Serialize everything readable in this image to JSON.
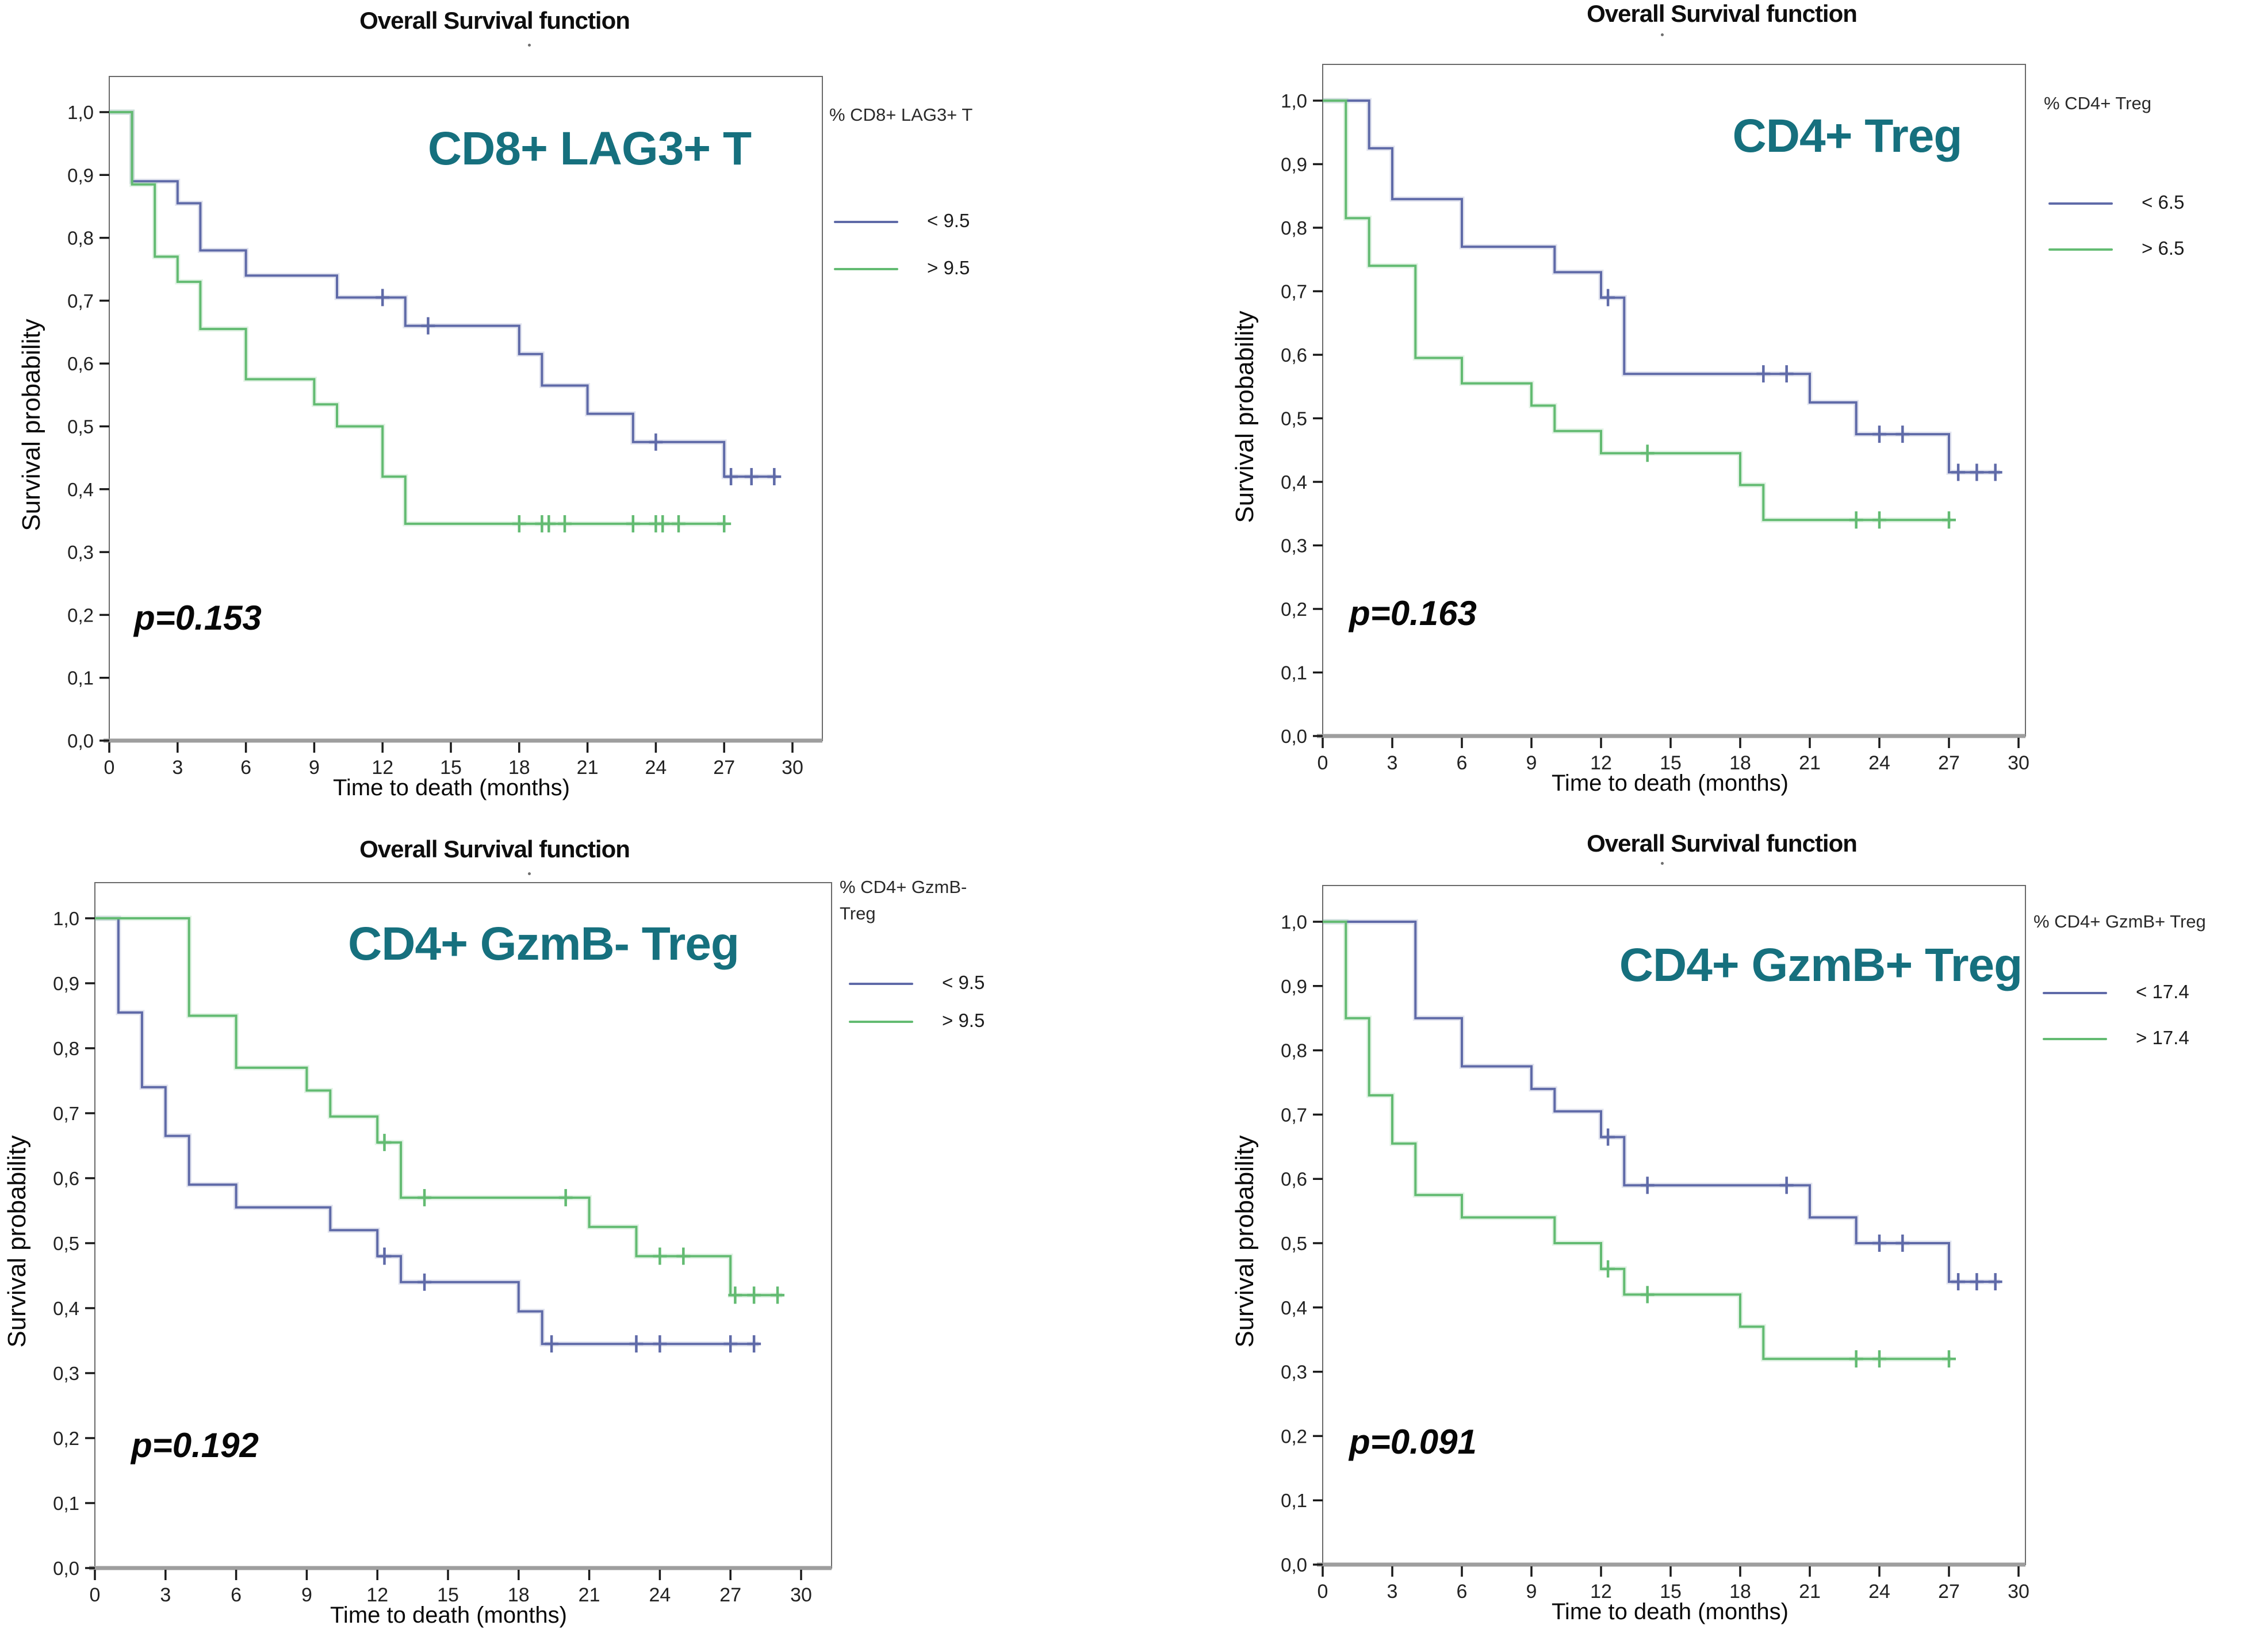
{
  "colors": {
    "blue": "#5f6aa8",
    "green": "#63bb72",
    "teal": "#16707e",
    "frame": "#6a6a6a",
    "baseline": "#9e9e9e",
    "tick": "#1a1a1a",
    "tick_label": "#222222"
  },
  "chart_data": [
    {
      "id": "cd8_lag3_t",
      "type": "line",
      "curve_style": "kaplan-meier-step",
      "title": "Overall Survival function",
      "panel_label": "CD8+ LAG3+ T",
      "p_value_text": "p=0.153",
      "xlabel": "Time to death (months)",
      "ylabel": "Survival probability",
      "xlim": [
        0,
        30
      ],
      "ylim": [
        0.0,
        1.0
      ],
      "x_ticks": [
        0,
        3,
        6,
        9,
        12,
        15,
        18,
        21,
        24,
        27,
        30
      ],
      "y_tick_values": [
        0.0,
        0.1,
        0.2,
        0.3,
        0.4,
        0.5,
        0.6,
        0.7,
        0.8,
        0.9,
        1.0
      ],
      "y_tick_labels": [
        "0,0",
        "0,1",
        "0,2",
        "0,3",
        "0,4",
        "0,5",
        "0,6",
        "0,7",
        "0,8",
        "0,9",
        "1,0"
      ],
      "grid": false,
      "legend": {
        "position": "right",
        "title_lines": [
          "% CD8+ LAG3+ T"
        ],
        "entries": [
          {
            "label": "< 9.5",
            "color": "blue"
          },
          {
            "label": "> 9.5",
            "color": "green"
          }
        ]
      },
      "series": [
        {
          "name": "< 9.5",
          "color": "blue",
          "points": [
            [
              0,
              1.0
            ],
            [
              1,
              0.89
            ],
            [
              3,
              0.855
            ],
            [
              4,
              0.78
            ],
            [
              6,
              0.74
            ],
            [
              10,
              0.705
            ],
            [
              13,
              0.66
            ],
            [
              18,
              0.615
            ],
            [
              19,
              0.565
            ],
            [
              21,
              0.52
            ],
            [
              23,
              0.475
            ],
            [
              27,
              0.42
            ]
          ],
          "end_x": 29.3,
          "censors": [
            [
              12,
              0.705
            ],
            [
              14,
              0.66
            ],
            [
              24,
              0.475
            ],
            [
              27.3,
              0.42
            ],
            [
              28.2,
              0.42
            ],
            [
              29.2,
              0.42
            ]
          ]
        },
        {
          "name": "> 9.5",
          "color": "green",
          "points": [
            [
              0,
              1.0
            ],
            [
              1,
              0.885
            ],
            [
              2,
              0.77
            ],
            [
              3,
              0.73
            ],
            [
              4,
              0.655
            ],
            [
              6,
              0.575
            ],
            [
              9,
              0.535
            ],
            [
              10,
              0.5
            ],
            [
              12,
              0.42
            ],
            [
              13,
              0.345
            ]
          ],
          "end_x": 27.1,
          "censors": [
            [
              18,
              0.345
            ],
            [
              19,
              0.345
            ],
            [
              19.3,
              0.345
            ],
            [
              20,
              0.345
            ],
            [
              23,
              0.345
            ],
            [
              24,
              0.345
            ],
            [
              24.3,
              0.345
            ],
            [
              25,
              0.345
            ],
            [
              27,
              0.345
            ]
          ]
        }
      ]
    },
    {
      "id": "cd4_treg",
      "type": "line",
      "curve_style": "kaplan-meier-step",
      "title": "Overall Survival function",
      "panel_label": "CD4+ Treg",
      "p_value_text": "p=0.163",
      "xlabel": "Time to death (months)",
      "ylabel": "Survival probability",
      "xlim": [
        0,
        30
      ],
      "ylim": [
        0.0,
        1.0
      ],
      "x_ticks": [
        0,
        3,
        6,
        9,
        12,
        15,
        18,
        21,
        24,
        27,
        30
      ],
      "y_tick_values": [
        0.0,
        0.1,
        0.2,
        0.3,
        0.4,
        0.5,
        0.6,
        0.7,
        0.8,
        0.9,
        1.0
      ],
      "y_tick_labels": [
        "0,0",
        "0,1",
        "0,2",
        "0,3",
        "0,4",
        "0,5",
        "0,6",
        "0,7",
        "0,8",
        "0,9",
        "1,0"
      ],
      "grid": false,
      "legend": {
        "position": "right",
        "title_lines": [
          "% CD4+ Treg"
        ],
        "entries": [
          {
            "label": "< 6.5",
            "color": "blue"
          },
          {
            "label": "> 6.5",
            "color": "green"
          }
        ]
      },
      "series": [
        {
          "name": "< 6.5",
          "color": "blue",
          "points": [
            [
              0,
              1.0
            ],
            [
              2,
              0.925
            ],
            [
              3,
              0.845
            ],
            [
              6,
              0.77
            ],
            [
              10,
              0.73
            ],
            [
              12,
              0.69
            ],
            [
              13,
              0.57
            ],
            [
              21,
              0.525
            ],
            [
              23,
              0.475
            ],
            [
              27,
              0.415
            ]
          ],
          "end_x": 29.2,
          "censors": [
            [
              12.3,
              0.69
            ],
            [
              19,
              0.57
            ],
            [
              20,
              0.57
            ],
            [
              24,
              0.475
            ],
            [
              25,
              0.475
            ],
            [
              27.4,
              0.415
            ],
            [
              28.2,
              0.415
            ],
            [
              29,
              0.415
            ]
          ]
        },
        {
          "name": "> 6.5",
          "color": "green",
          "points": [
            [
              0,
              1.0
            ],
            [
              1,
              0.815
            ],
            [
              2,
              0.74
            ],
            [
              4,
              0.595
            ],
            [
              6,
              0.555
            ],
            [
              9,
              0.52
            ],
            [
              10,
              0.48
            ],
            [
              12,
              0.445
            ],
            [
              18,
              0.395
            ],
            [
              19,
              0.34
            ]
          ],
          "end_x": 27.1,
          "censors": [
            [
              14,
              0.445
            ],
            [
              23,
              0.34
            ],
            [
              24,
              0.34
            ],
            [
              27,
              0.34
            ]
          ]
        }
      ]
    },
    {
      "id": "cd4_gzmb_neg_treg",
      "type": "line",
      "curve_style": "kaplan-meier-step",
      "title": "Overall Survival function",
      "panel_label": "CD4+ GzmB- Treg",
      "p_value_text": "p=0.192",
      "xlabel": "Time to death (months)",
      "ylabel": "Survival probability",
      "xlim": [
        0,
        30
      ],
      "ylim": [
        0.0,
        1.0
      ],
      "x_ticks": [
        0,
        3,
        6,
        9,
        12,
        15,
        18,
        21,
        24,
        27,
        30
      ],
      "y_tick_values": [
        0.0,
        0.1,
        0.2,
        0.3,
        0.4,
        0.5,
        0.6,
        0.7,
        0.8,
        0.9,
        1.0
      ],
      "y_tick_labels": [
        "0,0",
        "0,1",
        "0,2",
        "0,3",
        "0,4",
        "0,5",
        "0,6",
        "0,7",
        "0,8",
        "0,9",
        "1,0"
      ],
      "grid": false,
      "legend": {
        "position": "right",
        "title_lines": [
          "% CD4+ GzmB-",
          "Treg"
        ],
        "entries": [
          {
            "label": "< 9.5",
            "color": "blue"
          },
          {
            "label": "> 9.5",
            "color": "green"
          }
        ]
      },
      "series": [
        {
          "name": "< 9.5",
          "color": "blue",
          "points": [
            [
              0,
              1.0
            ],
            [
              1,
              0.855
            ],
            [
              2,
              0.74
            ],
            [
              3,
              0.665
            ],
            [
              4,
              0.59
            ],
            [
              6,
              0.555
            ],
            [
              10,
              0.52
            ],
            [
              12,
              0.48
            ],
            [
              13,
              0.44
            ],
            [
              18,
              0.395
            ],
            [
              19,
              0.345
            ]
          ],
          "end_x": 28.2,
          "censors": [
            [
              12.3,
              0.48
            ],
            [
              14,
              0.44
            ],
            [
              19.4,
              0.345
            ],
            [
              23,
              0.345
            ],
            [
              24,
              0.345
            ],
            [
              27,
              0.345
            ],
            [
              28,
              0.345
            ]
          ]
        },
        {
          "name": "> 9.5",
          "color": "green",
          "points": [
            [
              0,
              1.0
            ],
            [
              4,
              0.85
            ],
            [
              6,
              0.77
            ],
            [
              9,
              0.735
            ],
            [
              10,
              0.695
            ],
            [
              12,
              0.655
            ],
            [
              13,
              0.57
            ],
            [
              21,
              0.525
            ],
            [
              23,
              0.48
            ],
            [
              27,
              0.42
            ]
          ],
          "end_x": 29.2,
          "censors": [
            [
              12.3,
              0.655
            ],
            [
              14,
              0.57
            ],
            [
              20,
              0.57
            ],
            [
              24,
              0.48
            ],
            [
              25,
              0.48
            ],
            [
              27.2,
              0.42
            ],
            [
              28,
              0.42
            ],
            [
              29,
              0.42
            ]
          ]
        }
      ]
    },
    {
      "id": "cd4_gzmb_pos_treg",
      "type": "line",
      "curve_style": "kaplan-meier-step",
      "title": "Overall Survival function",
      "panel_label": "CD4+ GzmB+ Treg",
      "p_value_text": "p=0.091",
      "xlabel": "Time to death (months)",
      "ylabel": "Survival probability",
      "xlim": [
        0,
        30
      ],
      "ylim": [
        0.0,
        1.0
      ],
      "x_ticks": [
        0,
        3,
        6,
        9,
        12,
        15,
        18,
        21,
        24,
        27,
        30
      ],
      "y_tick_values": [
        0.0,
        0.1,
        0.2,
        0.3,
        0.4,
        0.5,
        0.6,
        0.7,
        0.8,
        0.9,
        1.0
      ],
      "y_tick_labels": [
        "0,0",
        "0,1",
        "0,2",
        "0,3",
        "0,4",
        "0,5",
        "0,6",
        "0,7",
        "0,8",
        "0,9",
        "1,0"
      ],
      "grid": false,
      "legend": {
        "position": "right",
        "title_lines": [
          "% CD4+ GzmB+ Treg"
        ],
        "entries": [
          {
            "label": "< 17.4",
            "color": "blue"
          },
          {
            "label": "> 17.4",
            "color": "green"
          }
        ]
      },
      "series": [
        {
          "name": "< 17.4",
          "color": "blue",
          "points": [
            [
              0,
              1.0
            ],
            [
              4,
              0.85
            ],
            [
              6,
              0.775
            ],
            [
              9,
              0.74
            ],
            [
              10,
              0.705
            ],
            [
              12,
              0.665
            ],
            [
              13,
              0.59
            ],
            [
              21,
              0.54
            ],
            [
              23,
              0.5
            ],
            [
              27,
              0.44
            ]
          ],
          "end_x": 29.2,
          "censors": [
            [
              12.3,
              0.665
            ],
            [
              14,
              0.59
            ],
            [
              20,
              0.59
            ],
            [
              24,
              0.5
            ],
            [
              25,
              0.5
            ],
            [
              27.4,
              0.44
            ],
            [
              28.2,
              0.44
            ],
            [
              29,
              0.44
            ]
          ]
        },
        {
          "name": "> 17.4",
          "color": "green",
          "points": [
            [
              0,
              1.0
            ],
            [
              1,
              0.85
            ],
            [
              2,
              0.73
            ],
            [
              3,
              0.655
            ],
            [
              4,
              0.575
            ],
            [
              6,
              0.54
            ],
            [
              10,
              0.5
            ],
            [
              12,
              0.46
            ],
            [
              13,
              0.42
            ],
            [
              18,
              0.37
            ],
            [
              19,
              0.32
            ]
          ],
          "end_x": 27.1,
          "censors": [
            [
              12.3,
              0.46
            ],
            [
              14,
              0.42
            ],
            [
              23,
              0.32
            ],
            [
              24,
              0.32
            ],
            [
              27,
              0.32
            ]
          ]
        }
      ]
    }
  ]
}
